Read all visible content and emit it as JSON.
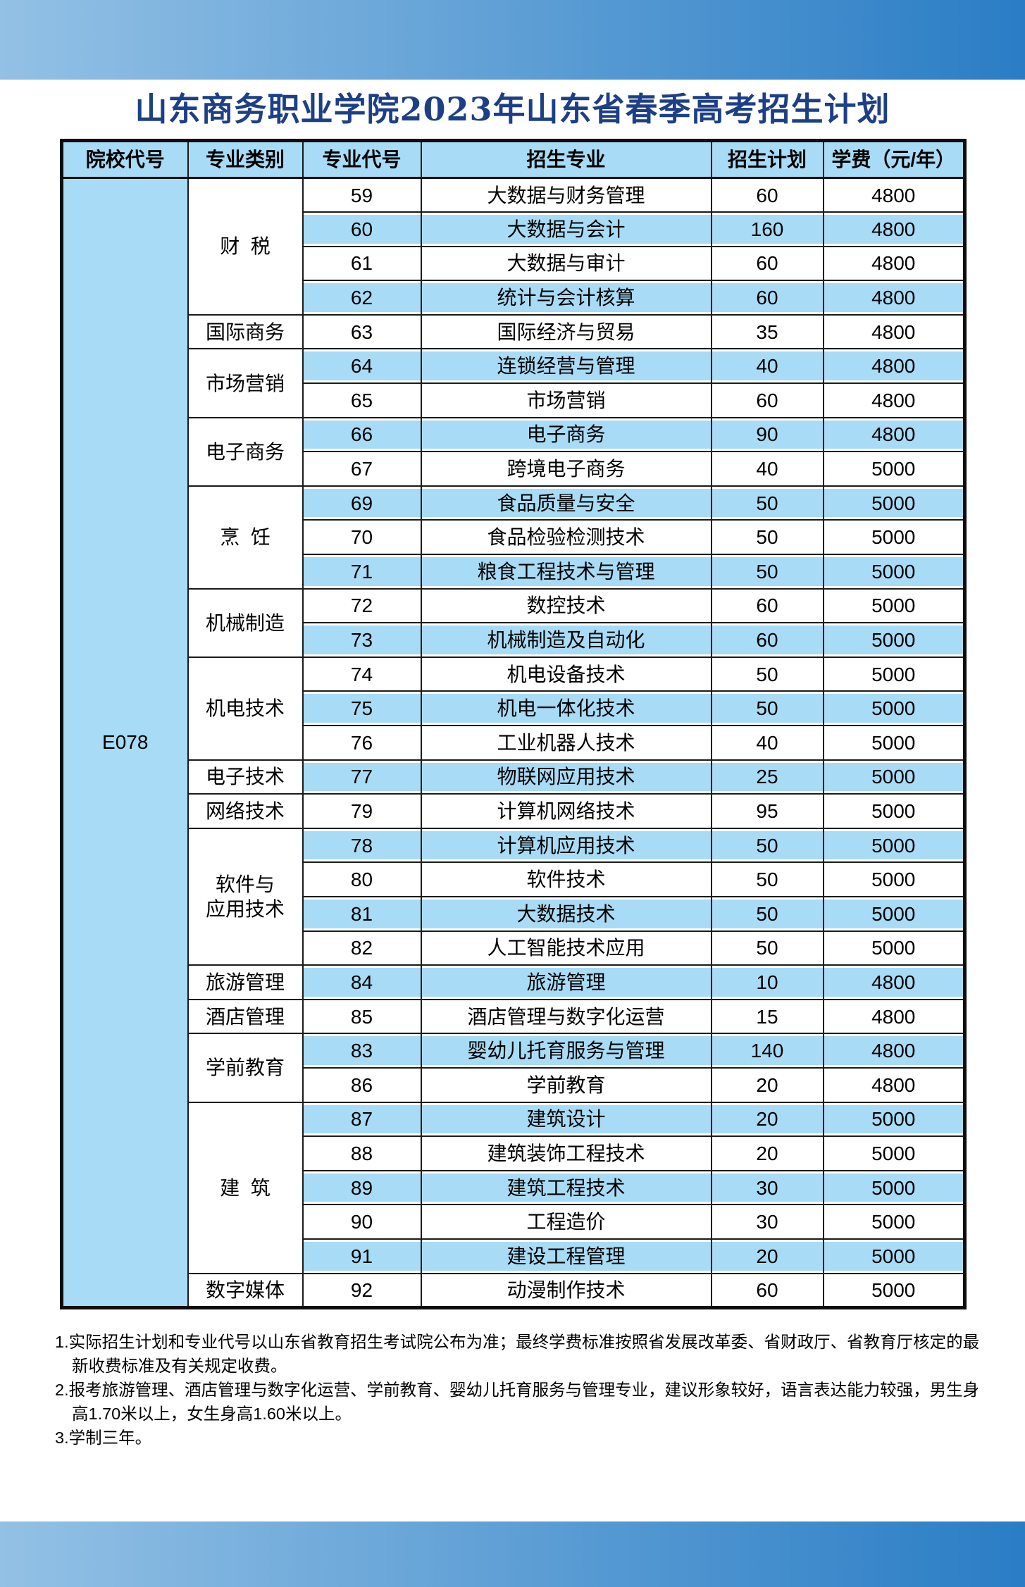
{
  "title": "山东商务职业学院2023年山东省春季高考招生计划",
  "colors": {
    "band-left": "#93C1E5",
    "band-right": "#2A7DC5",
    "cell-blue": "#A8DBF5",
    "title-color": "#1d3f85"
  },
  "table": {
    "headers": [
      "院校代号",
      "专业类别",
      "专业代号",
      "招生专业",
      "招生计划",
      "学费（元/年）"
    ],
    "school_code": "E078",
    "groups": [
      {
        "category": "财  税",
        "rows": [
          [
            "59",
            "大数据与财务管理",
            "60",
            "4800"
          ],
          [
            "60",
            "大数据与会计",
            "160",
            "4800"
          ],
          [
            "61",
            "大数据与审计",
            "60",
            "4800"
          ],
          [
            "62",
            "统计与会计核算",
            "60",
            "4800"
          ]
        ]
      },
      {
        "category": "国际商务",
        "rows": [
          [
            "63",
            "国际经济与贸易",
            "35",
            "4800"
          ]
        ]
      },
      {
        "category": "市场营销",
        "rows": [
          [
            "64",
            "连锁经营与管理",
            "40",
            "4800"
          ],
          [
            "65",
            "市场营销",
            "60",
            "4800"
          ]
        ]
      },
      {
        "category": "电子商务",
        "rows": [
          [
            "66",
            "电子商务",
            "90",
            "4800"
          ],
          [
            "67",
            "跨境电子商务",
            "40",
            "5000"
          ]
        ]
      },
      {
        "category": "烹  饪",
        "rows": [
          [
            "69",
            "食品质量与安全",
            "50",
            "5000"
          ],
          [
            "70",
            "食品检验检测技术",
            "50",
            "5000"
          ],
          [
            "71",
            "粮食工程技术与管理",
            "50",
            "5000"
          ]
        ]
      },
      {
        "category": "机械制造",
        "rows": [
          [
            "72",
            "数控技术",
            "60",
            "5000"
          ],
          [
            "73",
            "机械制造及自动化",
            "60",
            "5000"
          ]
        ]
      },
      {
        "category": "机电技术",
        "rows": [
          [
            "74",
            "机电设备技术",
            "50",
            "5000"
          ],
          [
            "75",
            "机电一体化技术",
            "50",
            "5000"
          ],
          [
            "76",
            "工业机器人技术",
            "40",
            "5000"
          ]
        ]
      },
      {
        "category": "电子技术",
        "rows": [
          [
            "77",
            "物联网应用技术",
            "25",
            "5000"
          ]
        ]
      },
      {
        "category": "网络技术",
        "rows": [
          [
            "79",
            "计算机网络技术",
            "95",
            "5000"
          ]
        ]
      },
      {
        "category": "软件与\n应用技术",
        "rows": [
          [
            "78",
            "计算机应用技术",
            "50",
            "5000"
          ],
          [
            "80",
            "软件技术",
            "50",
            "5000"
          ],
          [
            "81",
            "大数据技术",
            "50",
            "5000"
          ],
          [
            "82",
            "人工智能技术应用",
            "50",
            "5000"
          ]
        ]
      },
      {
        "category": "旅游管理",
        "rows": [
          [
            "84",
            "旅游管理",
            "10",
            "4800"
          ]
        ]
      },
      {
        "category": "酒店管理",
        "rows": [
          [
            "85",
            "酒店管理与数字化运营",
            "15",
            "4800"
          ]
        ]
      },
      {
        "category": "学前教育",
        "rows": [
          [
            "83",
            "婴幼儿托育服务与管理",
            "140",
            "4800"
          ],
          [
            "86",
            "学前教育",
            "20",
            "4800"
          ]
        ]
      },
      {
        "category": "建  筑",
        "rows": [
          [
            "87",
            "建筑设计",
            "20",
            "5000"
          ],
          [
            "88",
            "建筑装饰工程技术",
            "20",
            "5000"
          ],
          [
            "89",
            "建筑工程技术",
            "30",
            "5000"
          ],
          [
            "90",
            "工程造价",
            "30",
            "5000"
          ],
          [
            "91",
            "建设工程管理",
            "20",
            "5000"
          ]
        ]
      },
      {
        "category": "数字媒体",
        "rows": [
          [
            "92",
            "动漫制作技术",
            "60",
            "5000"
          ]
        ]
      }
    ]
  },
  "notes": [
    "1.实际招生计划和专业代号以山东省教育招生考试院公布为准；最终学费标准按照省发展改革委、省财政厅、省教育厅核定的最新收费标准及有关规定收费。",
    "2.报考旅游管理、酒店管理与数字化运营、学前教育、婴幼儿托育服务与管理专业，建议形象较好，语言表达能力较强，男生身高1.70米以上，女生身高1.60米以上。",
    "3.学制三年。"
  ]
}
